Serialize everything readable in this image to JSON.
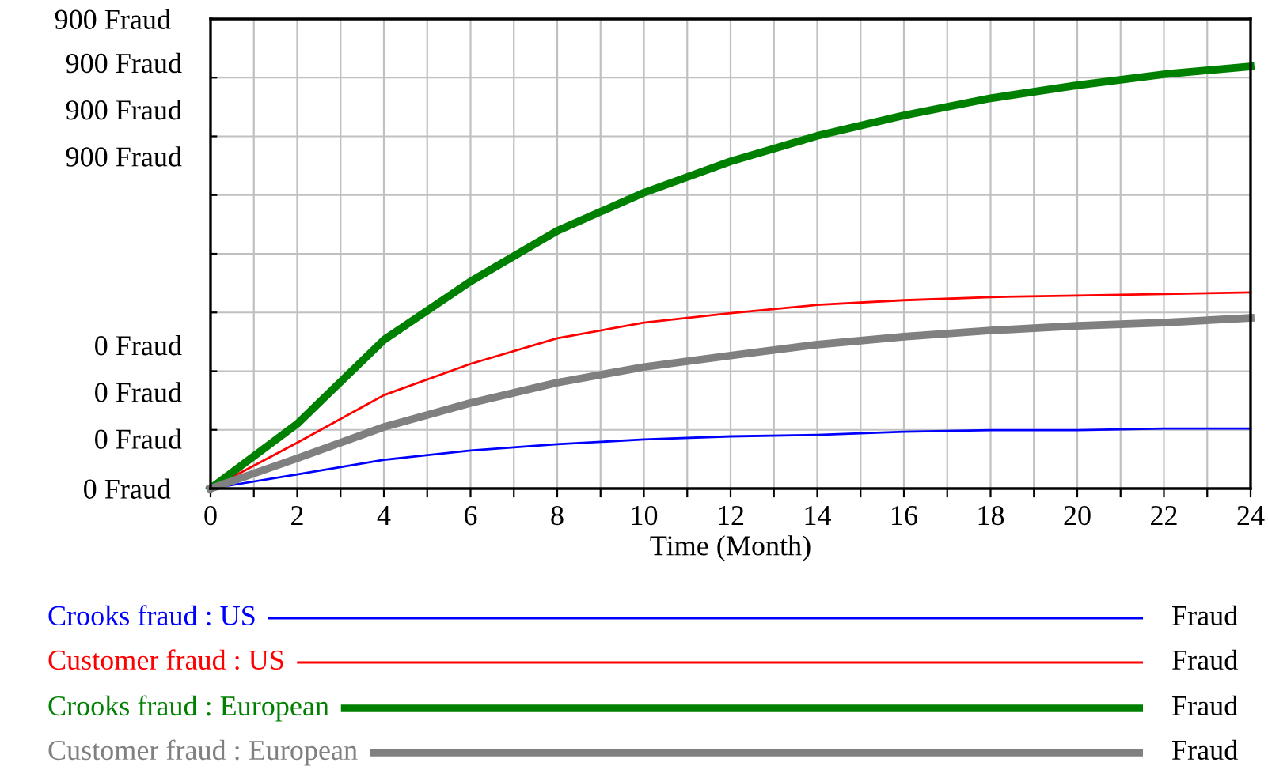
{
  "chart_data": {
    "type": "line",
    "xlabel": "Time (Month)",
    "x": [
      0,
      2,
      4,
      6,
      8,
      10,
      12,
      14,
      16,
      18,
      20,
      22,
      24
    ],
    "xlim": [
      0,
      24
    ],
    "xticks": [
      0,
      {
        "value": 1,
        "label": null
      },
      2,
      {
        "value": 3,
        "label": null
      },
      4,
      {
        "value": 5,
        "label": null
      },
      6,
      {
        "value": 7,
        "label": null
      },
      8,
      {
        "value": 9,
        "label": null
      },
      10,
      {
        "value": 11,
        "label": null
      },
      12,
      {
        "value": 13,
        "label": null
      },
      14,
      {
        "value": 15,
        "label": null
      },
      16,
      {
        "value": 17,
        "label": null
      },
      18,
      {
        "value": 19,
        "label": null
      },
      20,
      {
        "value": 21,
        "label": null
      },
      22,
      {
        "value": 23,
        "label": null
      },
      24
    ],
    "ylim": [
      0,
      900
    ],
    "yticks": [
      {
        "value": 0,
        "label": "0 Fraud"
      },
      {
        "value": 112.5,
        "label": null
      },
      {
        "value": 225,
        "label": null
      },
      {
        "value": 337.5,
        "label": null
      },
      {
        "value": 450,
        "label": null
      },
      {
        "value": 562.5,
        "label": null
      },
      {
        "value": 675,
        "label": null
      },
      {
        "value": 787.5,
        "label": null
      },
      {
        "value": 900,
        "label": "900 Fraud"
      }
    ],
    "grid": true,
    "legend": "bottom",
    "marker": "none",
    "line_style": "solid",
    "annotations": [
      "Fraud",
      "Fraud",
      "Fraud",
      "Fraud"
    ],
    "series": [
      {
        "name": "Crooks fraud : US",
        "color": "#0000ff",
        "axis": "y",
        "values": [
          0,
          27,
          55,
          73,
          85,
          94,
          100,
          103,
          109,
          112,
          112,
          115,
          115
        ]
      },
      {
        "name": "Customer fraud : US",
        "color": "#ff0000",
        "axis": "y",
        "values": [
          0,
          88,
          179,
          239,
          288,
          318,
          336,
          352,
          361,
          367,
          370,
          373,
          376
        ]
      },
      {
        "name": "Crooks fraud : European",
        "color": "#008000",
        "axis": "y",
        "values": [
          0,
          124,
          285,
          397,
          494,
          567,
          627,
          676,
          715,
          748,
          773,
          794,
          809
        ]
      },
      {
        "name": "Customer fraud : European",
        "color": "#808080",
        "axis": "y",
        "values": [
          0,
          58,
          118,
          164,
          203,
          233,
          255,
          276,
          291,
          303,
          312,
          318,
          327
        ]
      }
    ]
  }
}
